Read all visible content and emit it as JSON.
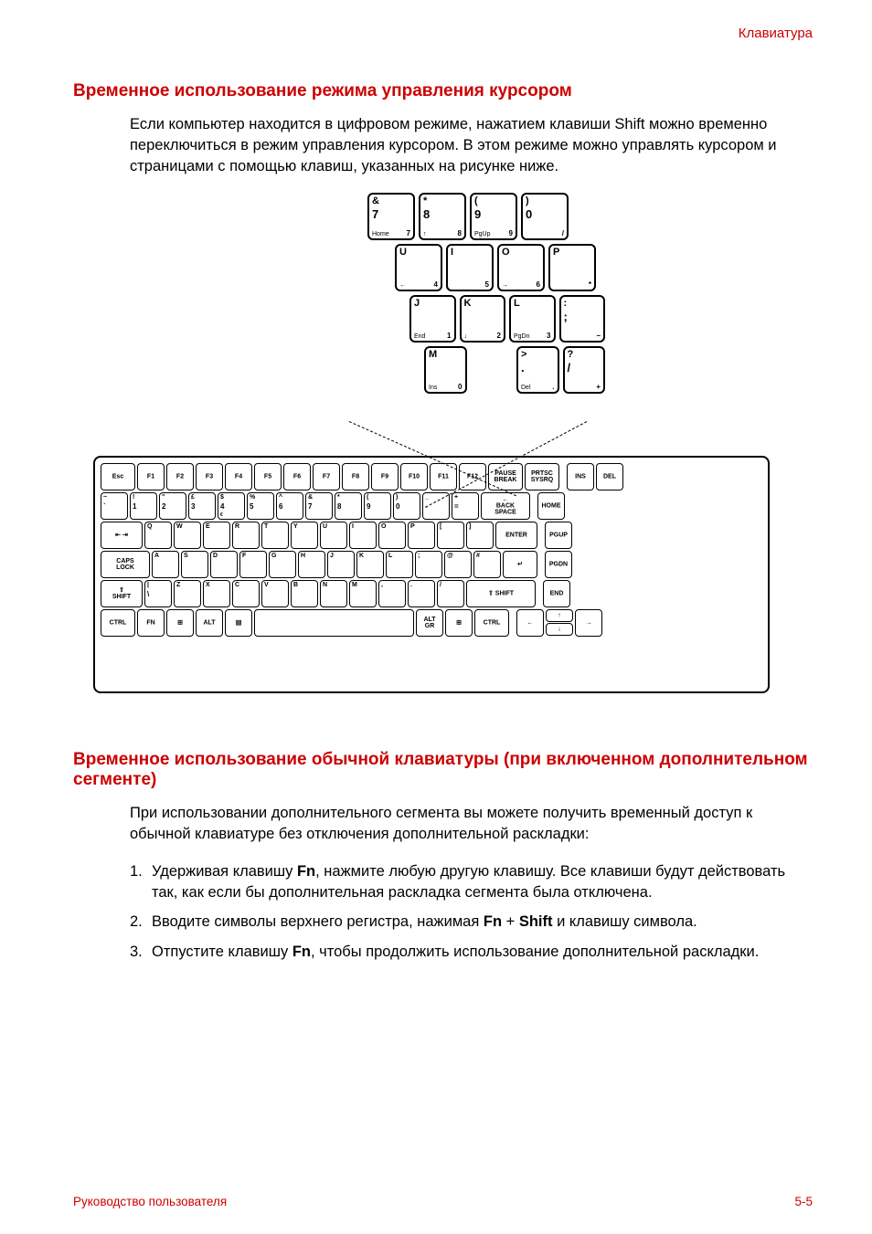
{
  "header": {
    "section": "Клавиатура"
  },
  "footer": {
    "left": "Руководство пользователя",
    "right": "5-5"
  },
  "section1": {
    "title": "Временное использование режима управления курсором",
    "para": "Если компьютер находится в цифровом режиме, нажатием клавиши Shift можно временно переключиться в режим управления курсором. В этом режиме можно управлять курсором и страницами с помощью клавиш, указанных на рисунке ниже."
  },
  "section2": {
    "title": "Временное использование обычной клавиатуры (при включенном дополнительном сегменте)",
    "para": "При использовании дополнительного сегмента вы можете получить временный доступ к обычной клавиатуре без отключения дополнительной раскладки:",
    "li1a": "Удерживая клавишу ",
    "li1b": "Fn",
    "li1c": ", нажмите любую другую клавишу. Все клавиши будут действовать так, как если бы дополнительная раскладка сегмента была отключена.",
    "li2a": "Вводите символы верхнего регистра, нажимая ",
    "li2b": "Fn",
    "li2c": " + ",
    "li2d": "Shift",
    "li2e": " и клавишу символа.",
    "li3a": "Отпустите клавишу ",
    "li3b": "Fn",
    "li3c": ", чтобы продолжить использование дополнительной раскладки."
  },
  "zoom": {
    "row1": [
      {
        "tl": "&",
        "ml": "7",
        "bl": "Home",
        "br": "7"
      },
      {
        "tl": "*",
        "ml": "8",
        "bl": "↑",
        "br": "8"
      },
      {
        "tl": "(",
        "ml": "9",
        "bl": "PgUp",
        "br": "9"
      },
      {
        "tl": ")",
        "ml": "0",
        "bl": "",
        "br": "/"
      }
    ],
    "row2": [
      {
        "tl": "U",
        "ml": "",
        "bl": "←",
        "br": "4"
      },
      {
        "tl": "I",
        "ml": "",
        "bl": "",
        "br": "5"
      },
      {
        "tl": "O",
        "ml": "",
        "bl": "→",
        "br": "6"
      },
      {
        "tl": "P",
        "ml": "",
        "bl": "",
        "br": "*"
      }
    ],
    "row3": [
      {
        "tl": "J",
        "ml": "",
        "bl": "End",
        "br": "1"
      },
      {
        "tl": "K",
        "ml": "",
        "bl": "↓",
        "br": "2"
      },
      {
        "tl": "L",
        "ml": "",
        "bl": "PgDn",
        "br": "3"
      },
      {
        "tl": ":",
        "ml": ";",
        "bl": "",
        "br": "−"
      }
    ],
    "row4": [
      {
        "tl": "M",
        "ml": "",
        "bl": "Ins",
        "br": "0"
      },
      null,
      {
        "tl": ">",
        "ml": ".",
        "bl": "Del",
        "br": "."
      },
      {
        "tl": "?",
        "ml": "/",
        "bl": "",
        "br": "+"
      }
    ]
  },
  "kb": {
    "r1": [
      "Esc",
      "F1",
      "F2",
      "F3",
      "F4",
      "F5",
      "F6",
      "F7",
      "F8",
      "F9",
      "F10",
      "F11",
      "F12",
      "PAUSE BREAK",
      "PRTSC SYSRQ",
      "INS",
      "DEL"
    ],
    "r2": [
      {
        "t": "~",
        "m": "`"
      },
      {
        "t": "!",
        "m": "1"
      },
      {
        "t": "\"",
        "m": "2"
      },
      {
        "t": "£",
        "m": "3"
      },
      {
        "t": "$",
        "m": "4",
        "b": "€"
      },
      {
        "t": "%",
        "m": "5"
      },
      {
        "t": "^",
        "m": "6"
      },
      {
        "t": "&",
        "m": "7"
      },
      {
        "t": "*",
        "m": "8"
      },
      {
        "t": "(",
        "m": "9"
      },
      {
        "t": ")",
        "m": "0"
      },
      {
        "t": "_",
        "m": "-"
      },
      {
        "t": "+",
        "m": "="
      }
    ],
    "r2b": "← BACK SPACE",
    "r2h": "HOME",
    "r3tab": "⇤\n⇥",
    "r3": [
      "Q",
      "W",
      "E",
      "R",
      "T",
      "Y",
      "U",
      "I",
      "O",
      "P",
      "[",
      "]"
    ],
    "r3e": "ENTER",
    "r3h": "PGUP",
    "r4caps": "CAPS LOCK",
    "r4": [
      "A",
      "S",
      "D",
      "F",
      "G",
      "H",
      "J",
      "K",
      "L",
      ";",
      "@",
      "#"
    ],
    "r4ret": "↵",
    "r4h": "PGDN",
    "r5shift": "⇧ SHIFT",
    "r5bs": "\\",
    "r5": [
      "Z",
      "X",
      "C",
      "V",
      "B",
      "N",
      "M",
      ",",
      ".",
      "/"
    ],
    "r5rshift": "⇧ SHIFT",
    "r5h": "END",
    "r6": [
      "CTRL",
      "FN",
      "⊞",
      "ALT",
      "▤",
      "",
      "ALT GR",
      "⊞",
      "CTRL"
    ],
    "arrows": {
      "left": "←",
      "up": "↑",
      "down": "↓",
      "right": "→"
    }
  },
  "colors": {
    "accent": "#cc0000",
    "text": "#000000",
    "bg": "#ffffff"
  }
}
